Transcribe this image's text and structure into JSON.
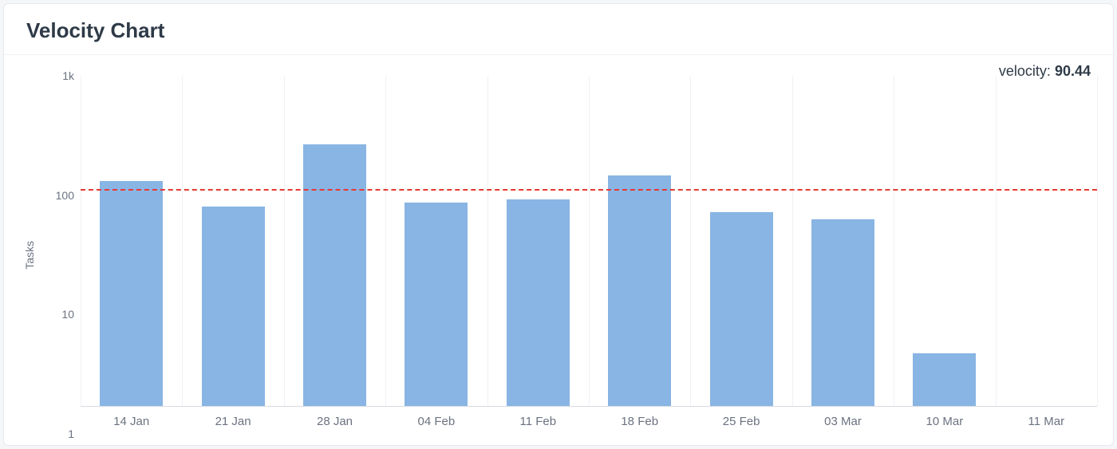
{
  "card": {
    "title": "Velocity Chart"
  },
  "velocity": {
    "label": "velocity:",
    "value": "90.44"
  },
  "chart": {
    "type": "bar",
    "scale": "log",
    "y_axis": {
      "label": "Tasks",
      "min": 1,
      "max": 1000,
      "ticks": [
        {
          "value": 1,
          "label": "1"
        },
        {
          "value": 10,
          "label": "10"
        },
        {
          "value": 100,
          "label": "100"
        },
        {
          "value": 1000,
          "label": "1k"
        }
      ]
    },
    "x_axis": {
      "categories": [
        "14 Jan",
        "21 Jan",
        "28 Jan",
        "04 Feb",
        "11 Feb",
        "18 Feb",
        "25 Feb",
        "03 Mar",
        "10 Mar",
        "11 Mar"
      ]
    },
    "series": {
      "values": [
        110,
        65,
        240,
        70,
        75,
        125,
        58,
        50,
        3,
        null
      ],
      "bar_color": "#88b5e3",
      "bar_width_ratio": 0.62
    },
    "reference_line": {
      "value": 90.44,
      "color": "#e53935",
      "dash": "10 8",
      "width": 2.5
    },
    "grid": {
      "vertical_color": "#f0f1f4",
      "axis_color": "#d8dae0"
    },
    "background_color": "#ffffff"
  }
}
